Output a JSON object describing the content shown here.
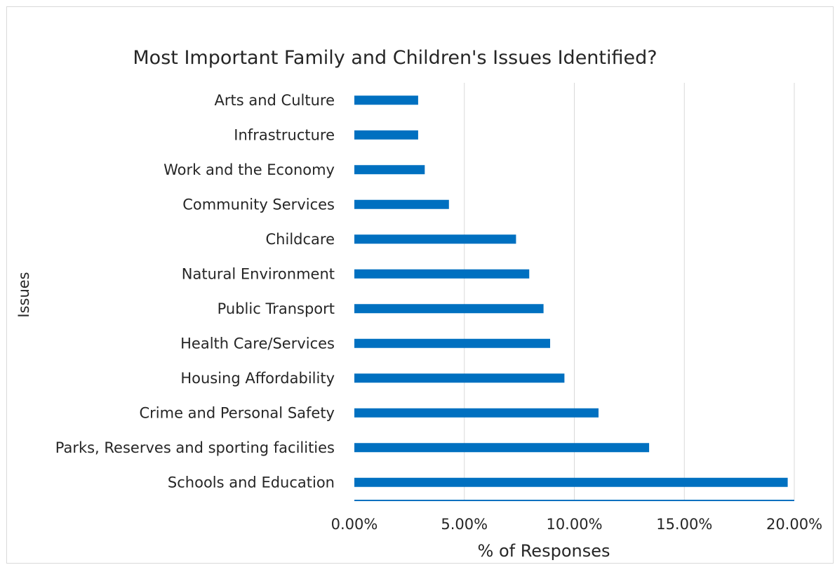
{
  "chart_data": {
    "type": "bar",
    "orientation": "horizontal",
    "title": "Most Important Family and Children's Issues Identified?",
    "xlabel": "% of Responses",
    "ylabel": "Issues",
    "categories": [
      "Schools and Education",
      "Parks, Reserves and sporting facilities",
      "Crime and Personal Safety",
      "Housing Affordability",
      "Health Care/Services",
      "Public Transport",
      "Natural Environment",
      "Childcare",
      "Community Services",
      "Work and the Economy",
      "Infrastructure",
      "Arts and Culture"
    ],
    "values": [
      19.7,
      13.4,
      11.1,
      9.55,
      8.9,
      8.6,
      7.95,
      7.35,
      4.3,
      3.2,
      2.9,
      2.9
    ],
    "xlim": [
      0,
      20
    ],
    "xticks": [
      0,
      5,
      10,
      15,
      20
    ],
    "xtick_labels": [
      "0.00%",
      "5.00%",
      "10.00%",
      "15.00%",
      "20.00%"
    ],
    "grid": "vertical",
    "legend": "none",
    "colors": {
      "bar": "#0070c0",
      "grid": "#d9d9d9",
      "axis": "#0070c0",
      "text": "#262626"
    }
  }
}
